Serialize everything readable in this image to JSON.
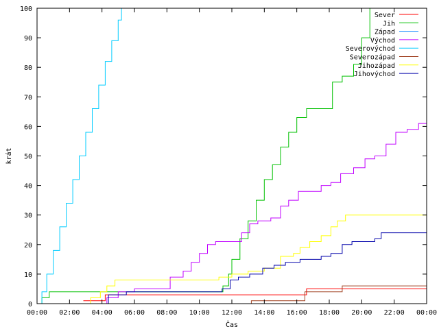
{
  "chart_data": {
    "type": "line",
    "xlabel": "Čas",
    "ylabel": "krát",
    "xlim": [
      0,
      24
    ],
    "ylim": [
      0,
      100
    ],
    "x_ticks": [
      0,
      2,
      4,
      6,
      8,
      10,
      12,
      14,
      16,
      18,
      20,
      22,
      24
    ],
    "x_tick_labels": [
      "00:00",
      "02:00",
      "04:00",
      "06:00",
      "08:00",
      "10:00",
      "12:00",
      "14:00",
      "16:00",
      "18:00",
      "20:00",
      "22:00",
      "00:00"
    ],
    "y_ticks": [
      0,
      10,
      20,
      30,
      40,
      50,
      60,
      70,
      80,
      90,
      100
    ],
    "grid": false,
    "legend_position": "top-right",
    "series": [
      {
        "name": "Sever",
        "color": "#ff0000",
        "x": [
          2.85,
          4.2,
          16.6,
          24
        ],
        "y": [
          1,
          3,
          5,
          5
        ]
      },
      {
        "name": "Jih",
        "color": "#00c000",
        "x": [
          0,
          0.3,
          0.75,
          11.1,
          11.45,
          11.8,
          12.0,
          12.5,
          13.0,
          13.5,
          14.0,
          14.5,
          15.0,
          15.5,
          16.0,
          16.6,
          17.5,
          18.2,
          18.8,
          19.5,
          20.0,
          20.5
        ],
        "y": [
          0,
          2,
          4,
          4,
          6,
          10,
          15,
          22,
          28,
          35,
          42,
          47,
          53,
          58,
          63,
          66,
          66,
          75,
          77,
          81,
          90,
          100
        ]
      },
      {
        "name": "Západ",
        "color": "#0080ff",
        "x": [
          3.7,
          24
        ],
        "y": [
          0,
          0
        ]
      },
      {
        "name": "Východ",
        "color": "#c000ff",
        "x": [
          3.7,
          4.3,
          5.0,
          6.0,
          8.2,
          9.0,
          9.5,
          10.0,
          10.5,
          11.0,
          11.5,
          12.0,
          12.6,
          13.1,
          13.6,
          14.4,
          15.0,
          15.5,
          16.1,
          16.6,
          17.5,
          18.1,
          18.7,
          19.5,
          20.2,
          20.8,
          21.5,
          22.1,
          22.8,
          23.5,
          24
        ],
        "y": [
          0,
          2,
          4,
          5,
          9,
          11,
          14,
          17,
          20,
          21,
          21,
          21,
          24,
          27,
          28,
          29,
          33,
          35,
          38,
          38,
          40,
          41,
          44,
          46,
          49,
          50,
          54,
          58,
          59,
          61,
          65
        ]
      },
      {
        "name": "Severovýchod",
        "color": "#00ccff",
        "x": [
          0,
          0.3,
          0.6,
          1.0,
          1.4,
          1.8,
          2.2,
          2.6,
          3.0,
          3.4,
          3.8,
          4.2,
          4.6,
          5.0,
          5.2
        ],
        "y": [
          0,
          4,
          10,
          18,
          26,
          34,
          42,
          50,
          58,
          66,
          74,
          82,
          89,
          96,
          100
        ]
      },
      {
        "name": "Severozápad",
        "color": "#a04020",
        "x": [
          12.8,
          13.2,
          16.5,
          18.8,
          24
        ],
        "y": [
          0,
          1,
          4,
          6,
          6
        ]
      },
      {
        "name": "Jihozápad",
        "color": "#ffff00",
        "x": [
          1.1,
          3.3,
          3.9,
          4.3,
          4.8,
          10.8,
          11.2,
          12.0,
          13.0,
          14.0,
          15.0,
          15.8,
          16.2,
          16.8,
          17.5,
          18.1,
          18.5,
          19.0,
          24
        ],
        "y": [
          0,
          2,
          4,
          6,
          8,
          8,
          9,
          10,
          11,
          12,
          16,
          17,
          19,
          21,
          23,
          26,
          28,
          30,
          30
        ]
      },
      {
        "name": "Jihovýchod",
        "color": "#0000aa",
        "x": [
          3.4,
          4.4,
          5.5,
          11.0,
          11.4,
          11.9,
          12.4,
          13.1,
          13.9,
          14.6,
          15.3,
          16.2,
          16.8,
          17.5,
          18.1,
          18.8,
          19.4,
          20.1,
          20.8,
          21.2,
          24
        ],
        "y": [
          0,
          3,
          4,
          4,
          5,
          8,
          9,
          10,
          12,
          13,
          14,
          15,
          15,
          16,
          17,
          20,
          21,
          21,
          22,
          24,
          24
        ]
      }
    ]
  }
}
